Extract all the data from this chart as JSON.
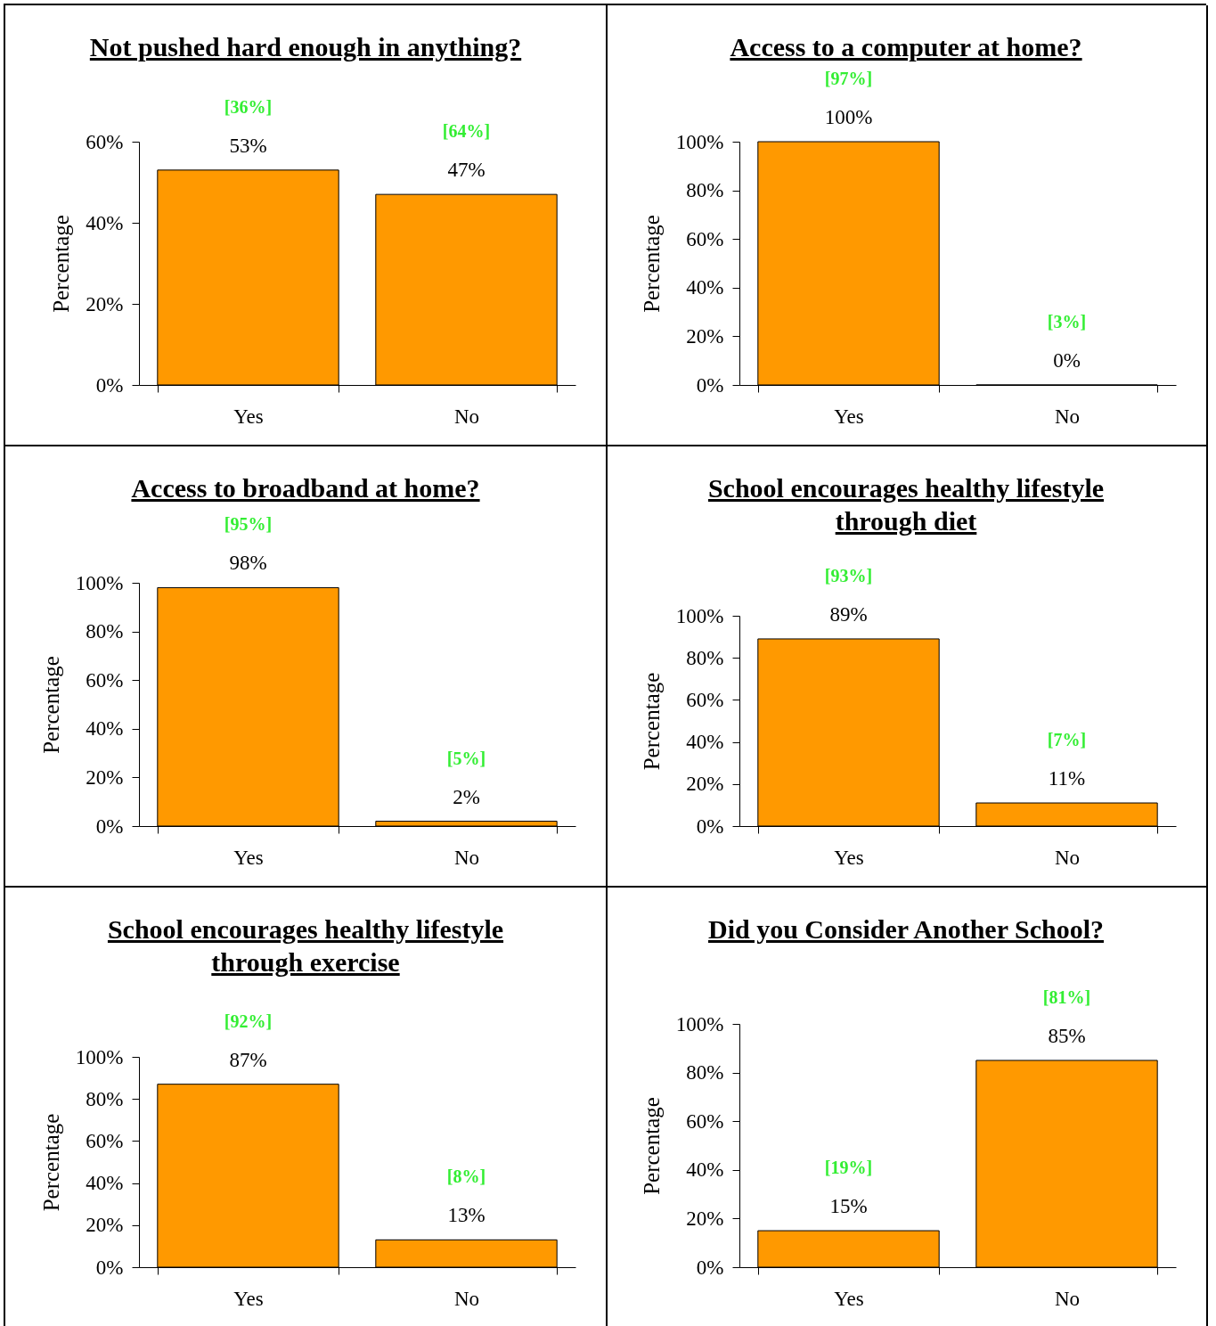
{
  "chart_data": [
    {
      "type": "bar",
      "title": "Not pushed hard enough in anything?",
      "ylabel": "Percentage",
      "categories": [
        "Yes",
        "No"
      ],
      "values": [
        53,
        47
      ],
      "value_labels": [
        "53%",
        "47%"
      ],
      "color": "#ff9900",
      "ylim": [
        0,
        60
      ],
      "yticks": [
        {
          "value": 0,
          "label": "0%"
        },
        {
          "value": 20,
          "label": "20%"
        },
        {
          "value": 40,
          "label": "40%"
        },
        {
          "value": 60,
          "label": "60%"
        }
      ],
      "annotations": [
        "[36%]",
        "[64%]"
      ]
    },
    {
      "type": "bar",
      "title": "Access to a computer at home?",
      "ylabel": "Percentage",
      "categories": [
        "Yes",
        "No"
      ],
      "values": [
        100,
        0
      ],
      "value_labels": [
        "100%",
        "0%"
      ],
      "color": "#ff9900",
      "ylim": [
        0,
        100
      ],
      "yticks": [
        {
          "value": 0,
          "label": "0%"
        },
        {
          "value": 20,
          "label": "20%"
        },
        {
          "value": 40,
          "label": "40%"
        },
        {
          "value": 60,
          "label": "60%"
        },
        {
          "value": 80,
          "label": "80%"
        },
        {
          "value": 100,
          "label": "100%"
        }
      ],
      "annotations": [
        "[97%]",
        "[3%]"
      ]
    },
    {
      "type": "bar",
      "title": "Access to broadband at home?",
      "ylabel": "Percentage",
      "categories": [
        "Yes",
        "No"
      ],
      "values": [
        98,
        2
      ],
      "value_labels": [
        "98%",
        "2%"
      ],
      "color": "#ff9900",
      "ylim": [
        0,
        100
      ],
      "yticks": [
        {
          "value": 0,
          "label": "0%"
        },
        {
          "value": 20,
          "label": "20%"
        },
        {
          "value": 40,
          "label": "40%"
        },
        {
          "value": 60,
          "label": "60%"
        },
        {
          "value": 80,
          "label": "80%"
        },
        {
          "value": 100,
          "label": "100%"
        }
      ],
      "annotations": [
        "[95%]",
        "[5%]"
      ]
    },
    {
      "type": "bar",
      "title": "School encourages healthy lifestyle through diet",
      "ylabel": "Percentage",
      "categories": [
        "Yes",
        "No"
      ],
      "values": [
        89,
        11
      ],
      "value_labels": [
        "89%",
        "11%"
      ],
      "color": "#ff9900",
      "ylim": [
        0,
        100
      ],
      "yticks": [
        {
          "value": 0,
          "label": "0%"
        },
        {
          "value": 20,
          "label": "20%"
        },
        {
          "value": 40,
          "label": "40%"
        },
        {
          "value": 60,
          "label": "60%"
        },
        {
          "value": 80,
          "label": "80%"
        },
        {
          "value": 100,
          "label": "100%"
        }
      ],
      "annotations": [
        "[93%]",
        "[7%]"
      ]
    },
    {
      "type": "bar",
      "title": "School encourages healthy lifestyle through exercise",
      "ylabel": "Percentage",
      "categories": [
        "Yes",
        "No"
      ],
      "values": [
        87,
        13
      ],
      "value_labels": [
        "87%",
        "13%"
      ],
      "color": "#ff9900",
      "ylim": [
        0,
        100
      ],
      "yticks": [
        {
          "value": 0,
          "label": "0%"
        },
        {
          "value": 20,
          "label": "20%"
        },
        {
          "value": 40,
          "label": "40%"
        },
        {
          "value": 60,
          "label": "60%"
        },
        {
          "value": 80,
          "label": "80%"
        },
        {
          "value": 100,
          "label": "100%"
        }
      ],
      "annotations": [
        "[92%]",
        "[8%]"
      ]
    },
    {
      "type": "bar",
      "title": "Did you Consider Another School?",
      "ylabel": "Percentage",
      "categories": [
        "Yes",
        "No"
      ],
      "values": [
        15,
        85
      ],
      "value_labels": [
        "15%",
        "85%"
      ],
      "color": "#ff9900",
      "ylim": [
        0,
        100
      ],
      "yticks": [
        {
          "value": 0,
          "label": "0%"
        },
        {
          "value": 20,
          "label": "20%"
        },
        {
          "value": 40,
          "label": "40%"
        },
        {
          "value": 60,
          "label": "60%"
        },
        {
          "value": 80,
          "label": "80%"
        },
        {
          "value": 100,
          "label": "100%"
        }
      ],
      "annotations": [
        "[19%]",
        "[81%]"
      ]
    }
  ]
}
